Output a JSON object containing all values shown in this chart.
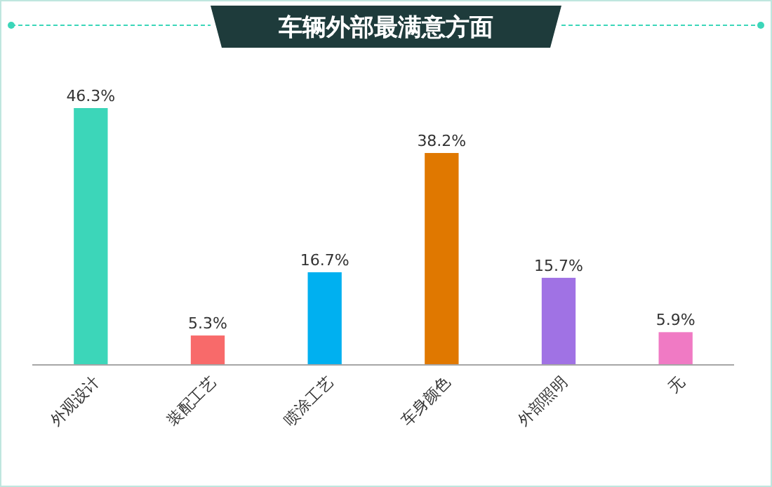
{
  "chart_data": {
    "type": "bar",
    "title": "车辆外部最满意方面",
    "categories": [
      "外观设计",
      "装配工艺",
      "喷涂工艺",
      "车身颜色",
      "外部照明",
      "无"
    ],
    "values": [
      46.3,
      5.3,
      16.7,
      38.2,
      15.7,
      5.9
    ],
    "colors": [
      "#3cd6b9",
      "#f86a6a",
      "#00b0f0",
      "#e07800",
      "#a072e4",
      "#f07ac4"
    ],
    "value_labels": [
      "46.3%",
      "5.3%",
      "16.7%",
      "38.2%",
      "15.7%",
      "5.9%"
    ]
  }
}
